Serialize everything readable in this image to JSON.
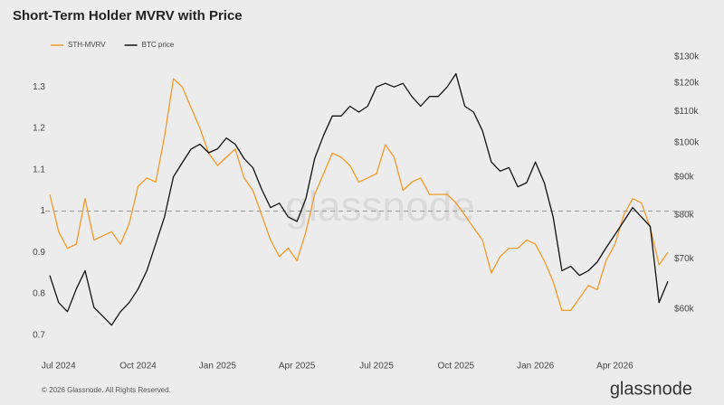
{
  "chart_data": {
    "type": "line",
    "title": "Short-Term Holder MVRV with Price",
    "footer": "© 2026 Glassnode. All Rights Reserved.",
    "brand": "glassnode",
    "categories": [
      null,
      "Jul 2024",
      null,
      null,
      null,
      null,
      null,
      null,
      null,
      null,
      "Oct 2024",
      null,
      null,
      null,
      null,
      null,
      null,
      null,
      null,
      "Jan 2025",
      null,
      null,
      null,
      null,
      null,
      null,
      null,
      null,
      "Apr 2025",
      null,
      null,
      null,
      null,
      null,
      null,
      null,
      null,
      "Jul 2025",
      null,
      null,
      null,
      null,
      null,
      null,
      null,
      null,
      "Oct 2025",
      null,
      null,
      null,
      null,
      null,
      null,
      null,
      null,
      "Jan 2026",
      null,
      null,
      null,
      null,
      null,
      null,
      null,
      null,
      "Apr 2026",
      null,
      null,
      null,
      null,
      null,
      null
    ],
    "series": [
      {
        "name": "STH-MVRV",
        "color": "#f09a2a",
        "axis": "y",
        "values": [
          1.04,
          0.95,
          0.91,
          0.92,
          1.03,
          0.93,
          0.94,
          0.95,
          0.92,
          0.97,
          1.06,
          1.08,
          1.07,
          1.18,
          1.32,
          1.3,
          1.25,
          1.2,
          1.14,
          1.11,
          1.13,
          1.15,
          1.08,
          1.05,
          0.99,
          0.93,
          0.89,
          0.91,
          0.88,
          0.95,
          1.04,
          1.09,
          1.14,
          1.13,
          1.11,
          1.07,
          1.08,
          1.09,
          1.16,
          1.13,
          1.05,
          1.07,
          1.08,
          1.04,
          1.04,
          1.04,
          1.02,
          0.99,
          0.96,
          0.93,
          0.85,
          0.89,
          0.91,
          0.91,
          0.93,
          0.92,
          0.88,
          0.83,
          0.76,
          0.76,
          0.79,
          0.82,
          0.81,
          0.88,
          0.92,
          0.99,
          1.03,
          1.02,
          0.96,
          0.87,
          0.9
        ]
      },
      {
        "name": "BTC price",
        "color": "#111111",
        "axis": "y2",
        "values": [
          66500,
          61200,
          59500,
          63800,
          67500,
          60300,
          58700,
          57100,
          59500,
          61200,
          63800,
          67500,
          73300,
          79600,
          90000,
          94000,
          98000,
          99500,
          96900,
          98100,
          101400,
          99500,
          95200,
          92600,
          86600,
          81900,
          83000,
          79600,
          78500,
          84200,
          95200,
          102200,
          108500,
          108500,
          111800,
          109800,
          111800,
          118600,
          119900,
          118600,
          119900,
          115200,
          111800,
          115200,
          115200,
          118600,
          123500,
          111800,
          109800,
          103700,
          94200,
          91600,
          92600,
          87300,
          88400,
          94200,
          88400,
          79600,
          67500,
          68400,
          66500,
          67500,
          69300,
          72400,
          75400,
          78500,
          81900,
          79600,
          77300,
          61200,
          65300
        ]
      }
    ],
    "ylim": [
      0.67,
      1.38
    ],
    "yticks": [
      0.7,
      0.8,
      0.9,
      1,
      1.1,
      1.2,
      1.3
    ],
    "y2lim": [
      53300,
      131300
    ],
    "y2_log_scale": true,
    "y2ticks": [
      {
        "value": 60000,
        "label": "$60k"
      },
      {
        "value": 70000,
        "label": "$70k"
      },
      {
        "value": 80000,
        "label": "$80k"
      },
      {
        "value": 90000,
        "label": "$90k"
      },
      {
        "value": 100000,
        "label": "$100k"
      },
      {
        "value": 110000,
        "label": "$110k"
      },
      {
        "value": 120000,
        "label": "$120k"
      },
      {
        "value": 130000,
        "label": "$130k"
      }
    ],
    "reference_line": 1,
    "grid": false,
    "legend": "top-left"
  }
}
